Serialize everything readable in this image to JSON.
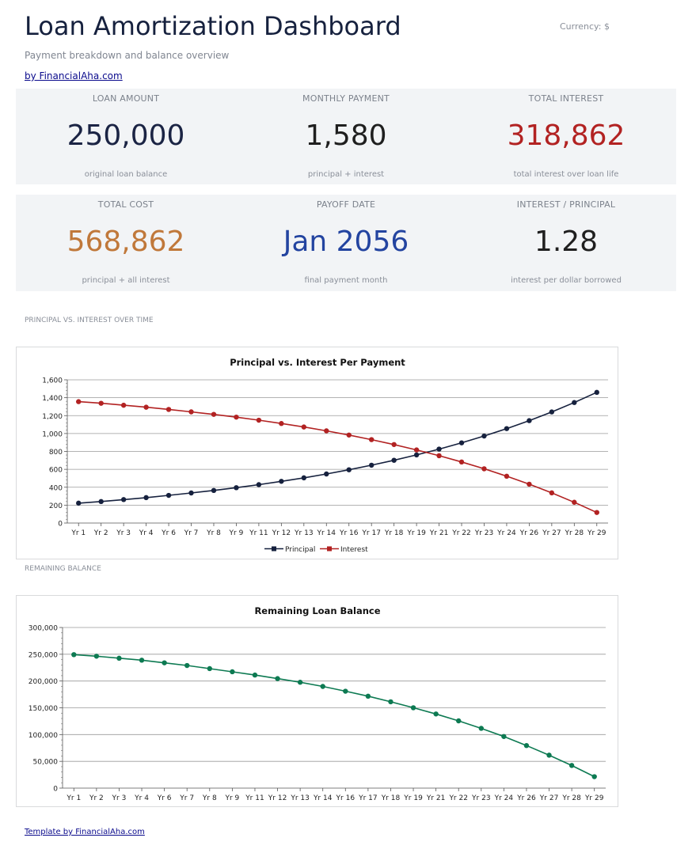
{
  "header": {
    "title": "Loan Amortization Dashboard",
    "currency": "Currency: $",
    "subtitle": "Payment breakdown and balance overview",
    "byline": "by FinancialAha.com"
  },
  "kpis": [
    {
      "label": "LOAN AMOUNT",
      "value": "250,000",
      "caption": "original loan balance",
      "color": "#1b2444"
    },
    {
      "label": "MONTHLY PAYMENT",
      "value": "1,580",
      "caption": "principal + interest",
      "color": "#1f1f1f"
    },
    {
      "label": "TOTAL INTEREST",
      "value": "318,862",
      "caption": "total interest over loan life",
      "color": "#b22222"
    },
    {
      "label": "TOTAL COST",
      "value": "568,862",
      "caption": "principal + all interest",
      "color": "#c0783a"
    },
    {
      "label": "PAYOFF DATE",
      "value": "Jan 2056",
      "caption": "final payment month",
      "color": "#2344a0"
    },
    {
      "label": "INTEREST / PRINCIPAL",
      "value": "1.28",
      "caption": "interest per dollar borrowed",
      "color": "#1f1f1f"
    }
  ],
  "sections": {
    "pvi": "PRINCIPAL VS. INTEREST OVER TIME",
    "balance": "REMAINING BALANCE"
  },
  "footer": {
    "link": "Template by FinancialAha.com"
  },
  "chart_data": [
    {
      "type": "line",
      "title": "Principal vs. Interest Per Payment",
      "categories": [
        "Yr 1",
        "Yr 2",
        "Yr 3",
        "Yr 4",
        "Yr 6",
        "Yr 7",
        "Yr 8",
        "Yr 9",
        "Yr 11",
        "Yr 12",
        "Yr 13",
        "Yr 14",
        "Yr 16",
        "Yr 17",
        "Yr 18",
        "Yr 19",
        "Yr 21",
        "Yr 22",
        "Yr 23",
        "Yr 24",
        "Yr 26",
        "Yr 27",
        "Yr 28",
        "Yr 29"
      ],
      "ylim": [
        0,
        1600
      ],
      "yticks": [
        0,
        200,
        400,
        600,
        800,
        1000,
        1200,
        1400,
        1600
      ],
      "ytick_labels": [
        "0",
        "200",
        "400",
        "600",
        "800",
        "1,000",
        "1,200",
        "1,400",
        "1,600"
      ],
      "grid": true,
      "legend": "bottom",
      "series": [
        {
          "name": "Principal",
          "color": "#16213e",
          "values": [
            222,
            240,
            262,
            284,
            309,
            336,
            364,
            395,
            429,
            466,
            505,
            548,
            595,
            646,
            701,
            761,
            826,
            896,
            972,
            1055,
            1144,
            1241,
            1346,
            1460
          ]
        },
        {
          "name": "Interest",
          "color": "#b22222",
          "values": [
            1356,
            1338,
            1316,
            1294,
            1269,
            1242,
            1214,
            1183,
            1149,
            1112,
            1073,
            1030,
            983,
            932,
            877,
            817,
            752,
            682,
            606,
            523,
            434,
            337,
            232,
            118
          ]
        }
      ]
    },
    {
      "type": "line",
      "title": "Remaining Loan Balance",
      "categories": [
        "Yr 1",
        "Yr 2",
        "Yr 3",
        "Yr 4",
        "Yr 6",
        "Yr 7",
        "Yr 8",
        "Yr 9",
        "Yr 11",
        "Yr 12",
        "Yr 13",
        "Yr 14",
        "Yr 16",
        "Yr 17",
        "Yr 18",
        "Yr 19",
        "Yr 21",
        "Yr 22",
        "Yr 23",
        "Yr 24",
        "Yr 26",
        "Yr 27",
        "Yr 28",
        "Yr 29"
      ],
      "ylim": [
        0,
        300000
      ],
      "yticks": [
        0,
        50000,
        100000,
        150000,
        200000,
        250000,
        300000
      ],
      "ytick_labels": [
        "0",
        "50,000",
        "100,000",
        "150,000",
        "200,000",
        "250,000",
        "300,000"
      ],
      "grid": true,
      "series": [
        {
          "name": "",
          "color": "#0d7a52",
          "values": [
            249300,
            246400,
            242600,
            238900,
            234000,
            229000,
            223200,
            217300,
            211200,
            204500,
            197700,
            189900,
            181000,
            171700,
            161200,
            150100,
            138500,
            125600,
            111600,
            96400,
            79500,
            61500,
            42300,
            21400
          ]
        }
      ]
    }
  ]
}
